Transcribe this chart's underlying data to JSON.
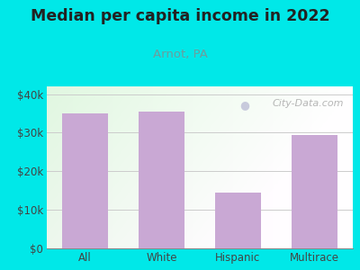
{
  "title": "Median per capita income in 2022",
  "subtitle": "Arnot, PA",
  "categories": [
    "All",
    "White",
    "Hispanic",
    "Multirace"
  ],
  "values": [
    35000,
    35500,
    14500,
    29500
  ],
  "bar_color": "#c9a8d4",
  "outer_bg": "#00e8e8",
  "subtitle_color": "#6b9e9e",
  "title_color": "#222222",
  "tick_color": "#444444",
  "grid_color": "#cccccc",
  "ylim": [
    0,
    42000
  ],
  "yticks": [
    0,
    10000,
    20000,
    30000,
    40000
  ],
  "ytick_labels": [
    "$0",
    "$10k",
    "$20k",
    "$30k",
    "$40k"
  ],
  "watermark_text": "City-Data.com",
  "watermark_color": "#aaaaaa"
}
